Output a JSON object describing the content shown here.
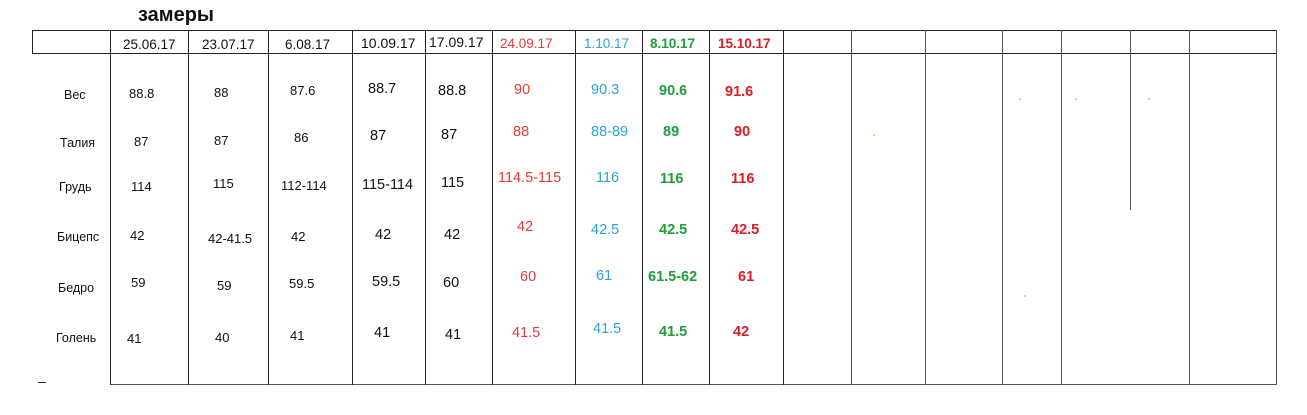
{
  "title": "замеры",
  "dates": [
    "25.06.17",
    "23.07.17",
    "6.08.17",
    "10.09.17",
    "17.09.17",
    "24.09.17",
    "1.10.17",
    "8.10.17",
    "15.10.17"
  ],
  "date_colors": [
    "#111111",
    "#111111",
    "#111111",
    "#111111",
    "#111111",
    "#e23b3b",
    "#2aa2d8",
    "#1f9e3a",
    "#e01b24"
  ],
  "rows": [
    {
      "label": "Вес",
      "values": [
        "88.8",
        "88",
        "87.6",
        "88.7",
        "88.8",
        "90",
        "90.3",
        "90.6",
        "91.6"
      ]
    },
    {
      "label": "Талия",
      "values": [
        "87",
        "87",
        "86",
        "87",
        "87",
        "88",
        "88-89",
        "89",
        "90"
      ]
    },
    {
      "label": "Грудь",
      "values": [
        "114",
        "115",
        "112-114",
        "115-114",
        "115",
        "114.5-115",
        "116",
        "116",
        "116"
      ]
    },
    {
      "label": "Бицепс",
      "values": [
        "42",
        "42-41.5",
        "42",
        "42",
        "42",
        "42",
        "42.5",
        "42.5",
        "42.5"
      ]
    },
    {
      "label": "Бедро",
      "values": [
        "59",
        "59",
        "59.5",
        "59.5",
        "60",
        "60",
        "61",
        "61.5-62",
        "61"
      ]
    },
    {
      "label": "Голень",
      "values": [
        "41",
        "40",
        "41",
        "41",
        "41",
        "41.5",
        "41.5",
        "41.5",
        "42"
      ]
    }
  ]
}
